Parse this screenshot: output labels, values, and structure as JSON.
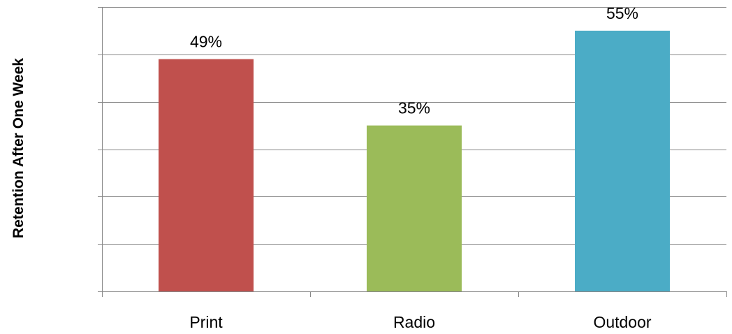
{
  "chart_data": {
    "type": "bar",
    "title": "",
    "xlabel": "",
    "ylabel": "Retention After One Week",
    "categories": [
      "Print",
      "Radio",
      "Outdoor"
    ],
    "values": [
      49,
      35,
      55
    ],
    "value_labels": [
      "49%",
      "35%",
      "55%"
    ],
    "ylim": [
      0,
      60
    ],
    "y_gridlines": [
      0,
      10,
      20,
      30,
      40,
      50,
      60
    ],
    "grid": true,
    "show_y_tick_labels": false,
    "legend": "none",
    "colors": [
      "#c0504d",
      "#9bbb59",
      "#4bacc6"
    ]
  }
}
